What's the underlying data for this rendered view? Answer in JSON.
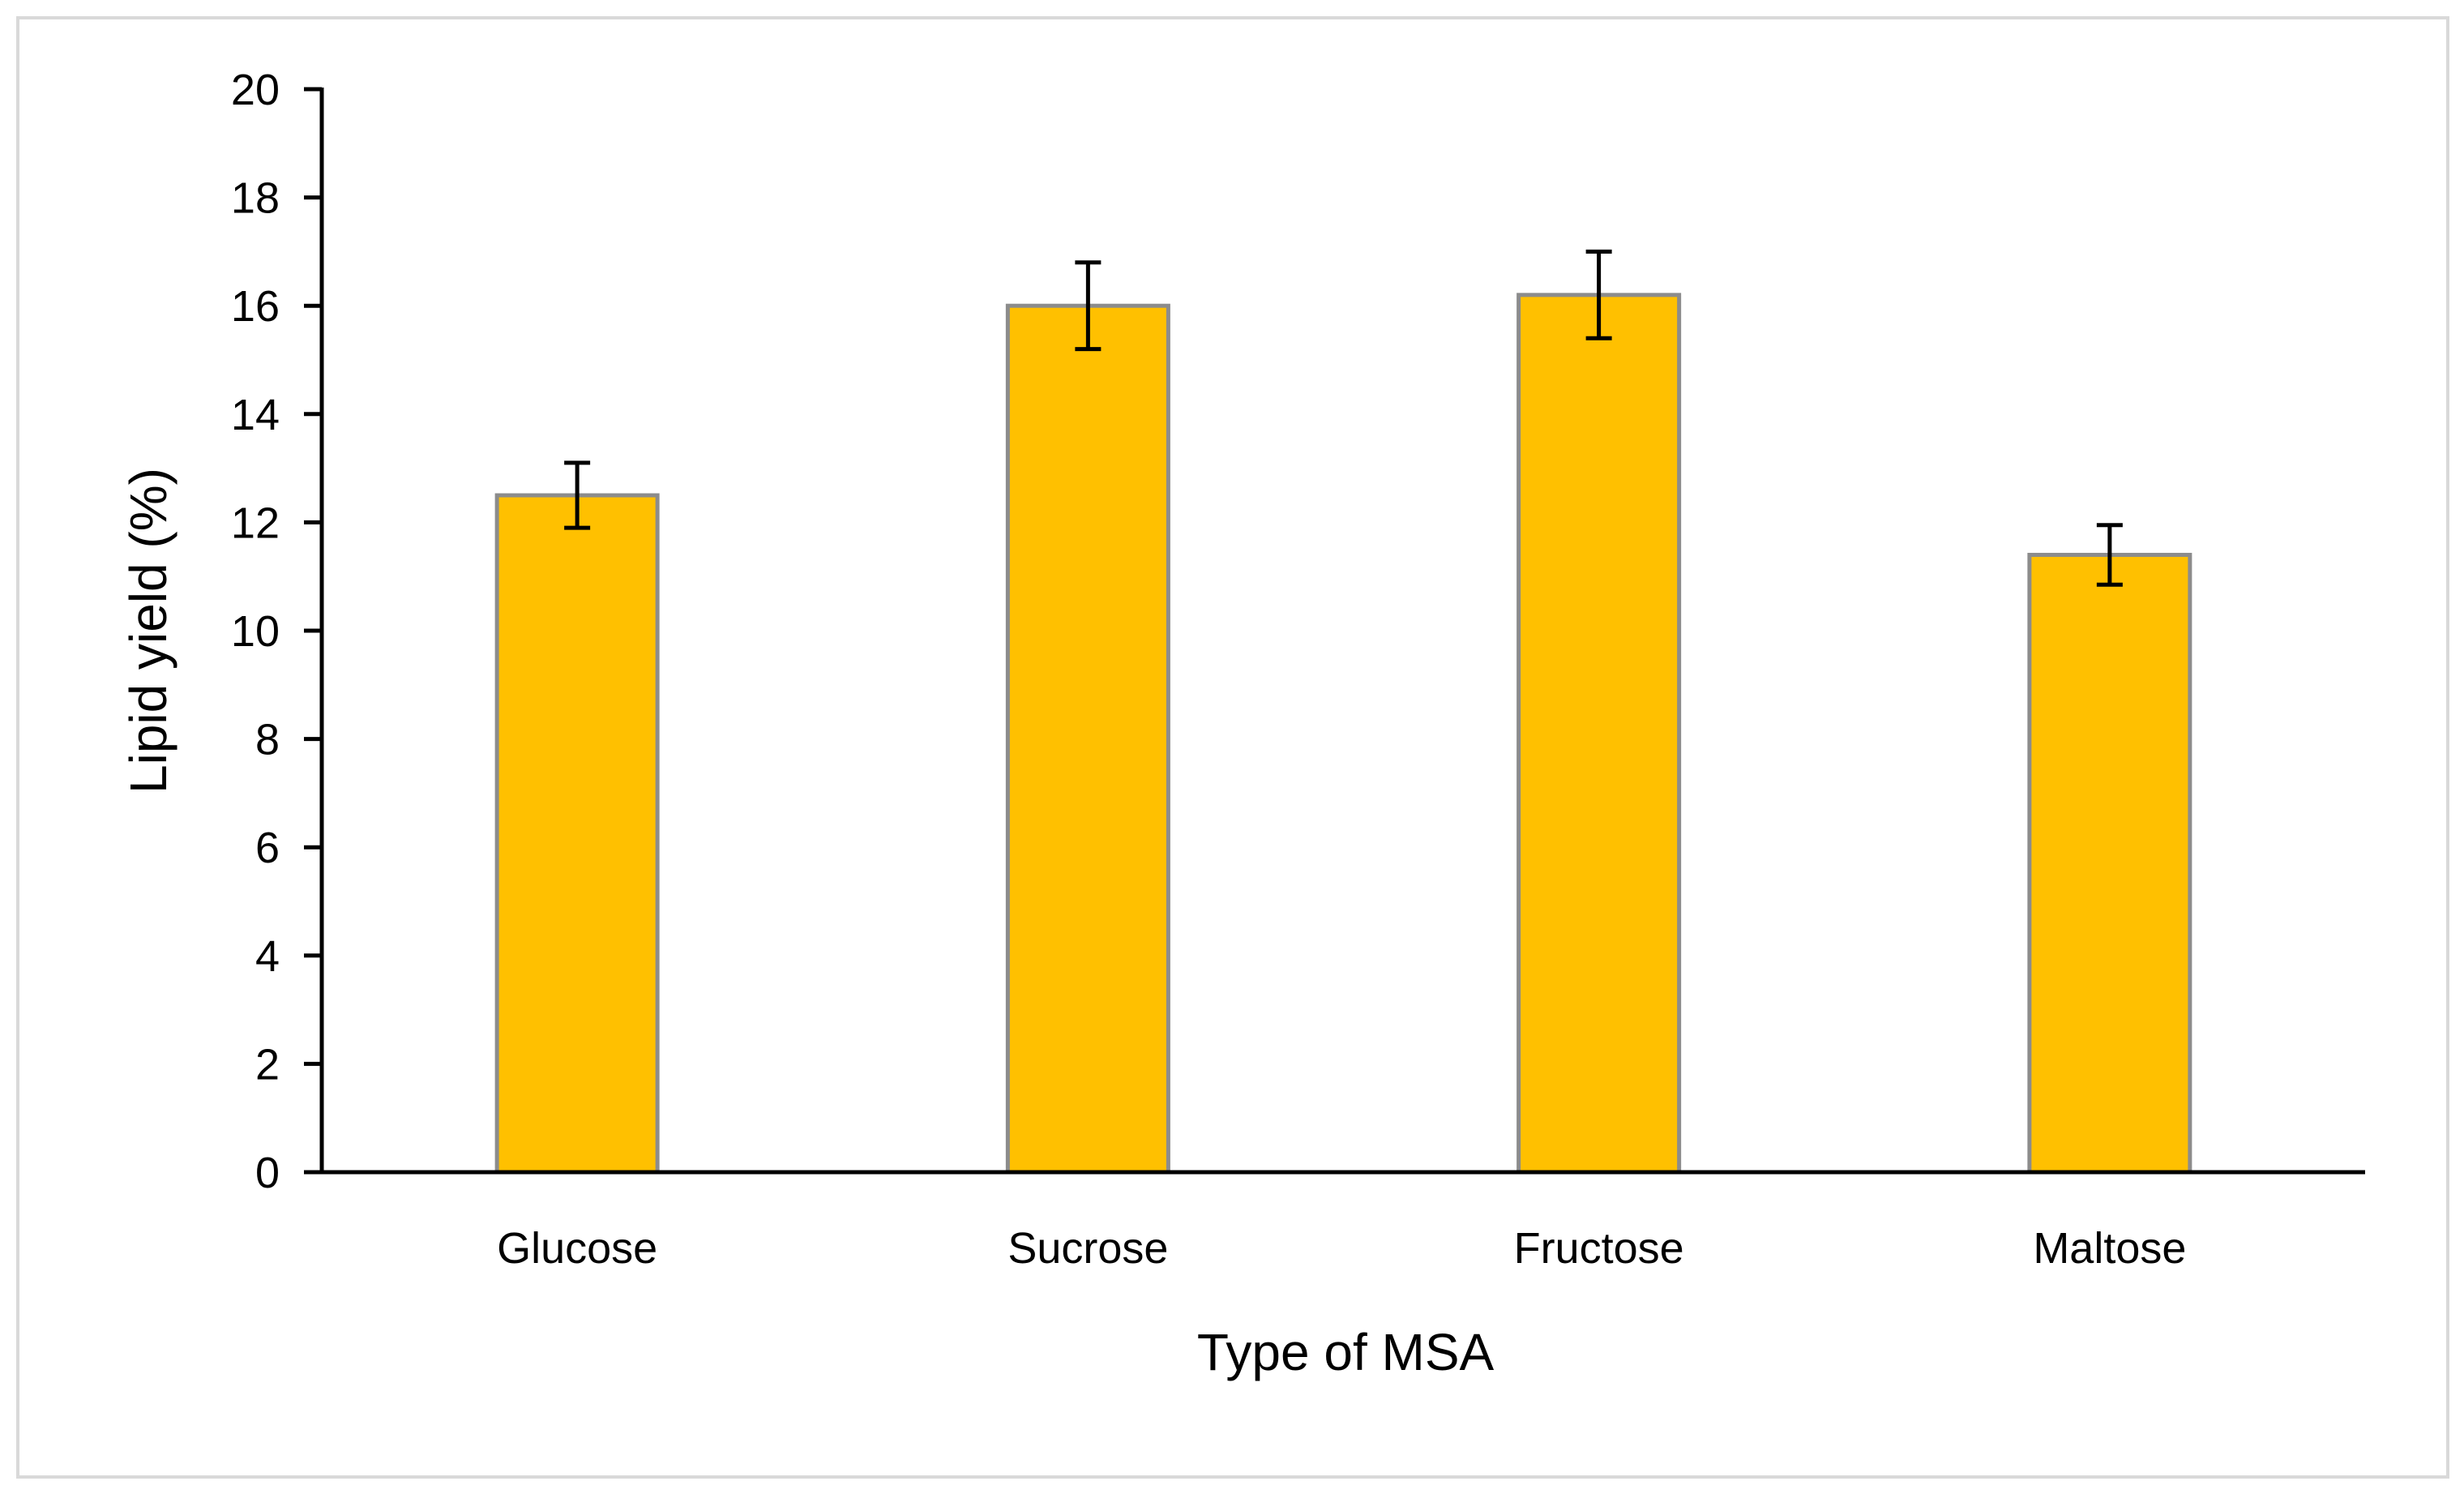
{
  "chart_data": {
    "type": "bar",
    "title": "",
    "xlabel": "Type of MSA",
    "ylabel": "Lipid yield (%)",
    "categories": [
      "Glucose",
      "Sucrose",
      "Fructose",
      "Maltose"
    ],
    "values": [
      12.5,
      16.0,
      16.2,
      11.4
    ],
    "error": [
      0.6,
      0.8,
      0.8,
      0.55
    ],
    "ylim": [
      0,
      20
    ],
    "yticks": [
      0,
      2,
      4,
      6,
      8,
      10,
      12,
      14,
      16,
      18,
      20
    ],
    "grid": false,
    "legend": "none",
    "colors": {
      "bar_fill": "#FFC000",
      "bar_edge": "#8C8C8C",
      "axis": "#000000",
      "error_bar": "#000000",
      "frame": "#D9D9D9"
    }
  }
}
